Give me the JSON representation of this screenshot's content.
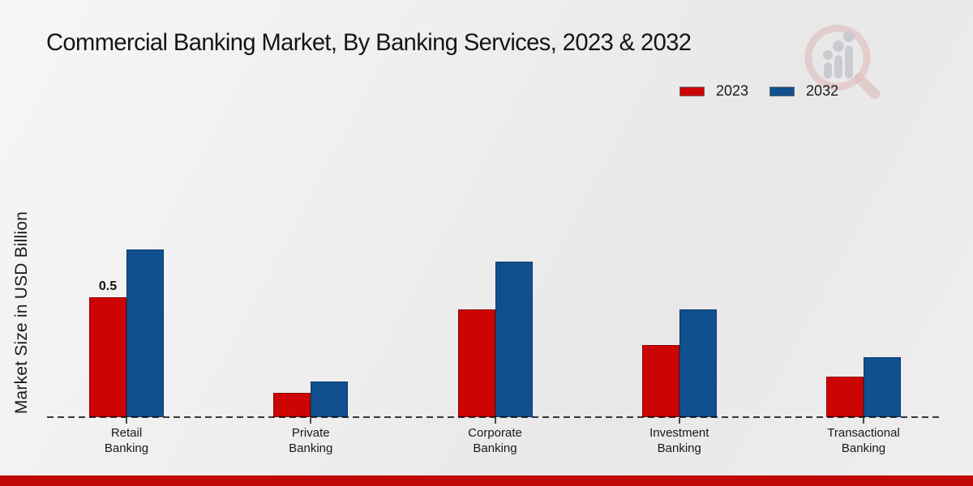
{
  "page": {
    "watermark_icon": "magnifier-growth-chart-logo",
    "footer_accent_color": "#c10808",
    "background_color": "#ececec"
  },
  "legend": {
    "position": "top-right"
  },
  "chart_data": {
    "type": "bar",
    "title": "Commercial Banking Market, By Banking Services, 2023 & 2032",
    "xlabel": "",
    "ylabel": "Market Size in USD Billion",
    "categories": [
      "Retail Banking",
      "Private Banking",
      "Corporate Banking",
      "Investment Banking",
      "Transactional Banking"
    ],
    "series": [
      {
        "name": "2023",
        "color": "#cc0404",
        "values": [
          0.5,
          0.1,
          0.45,
          0.3,
          0.17
        ]
      },
      {
        "name": "2032",
        "color": "#10508e",
        "values": [
          0.7,
          0.15,
          0.65,
          0.45,
          0.25
        ]
      }
    ],
    "data_labels": [
      {
        "series_index": 0,
        "category_index": 0,
        "text": "0.5"
      }
    ],
    "ylim": [
      0,
      0.75
    ],
    "grid": false,
    "baseline_style": "dashed",
    "legend_position": "top-right",
    "y_axis_ticks_visible": false
  }
}
